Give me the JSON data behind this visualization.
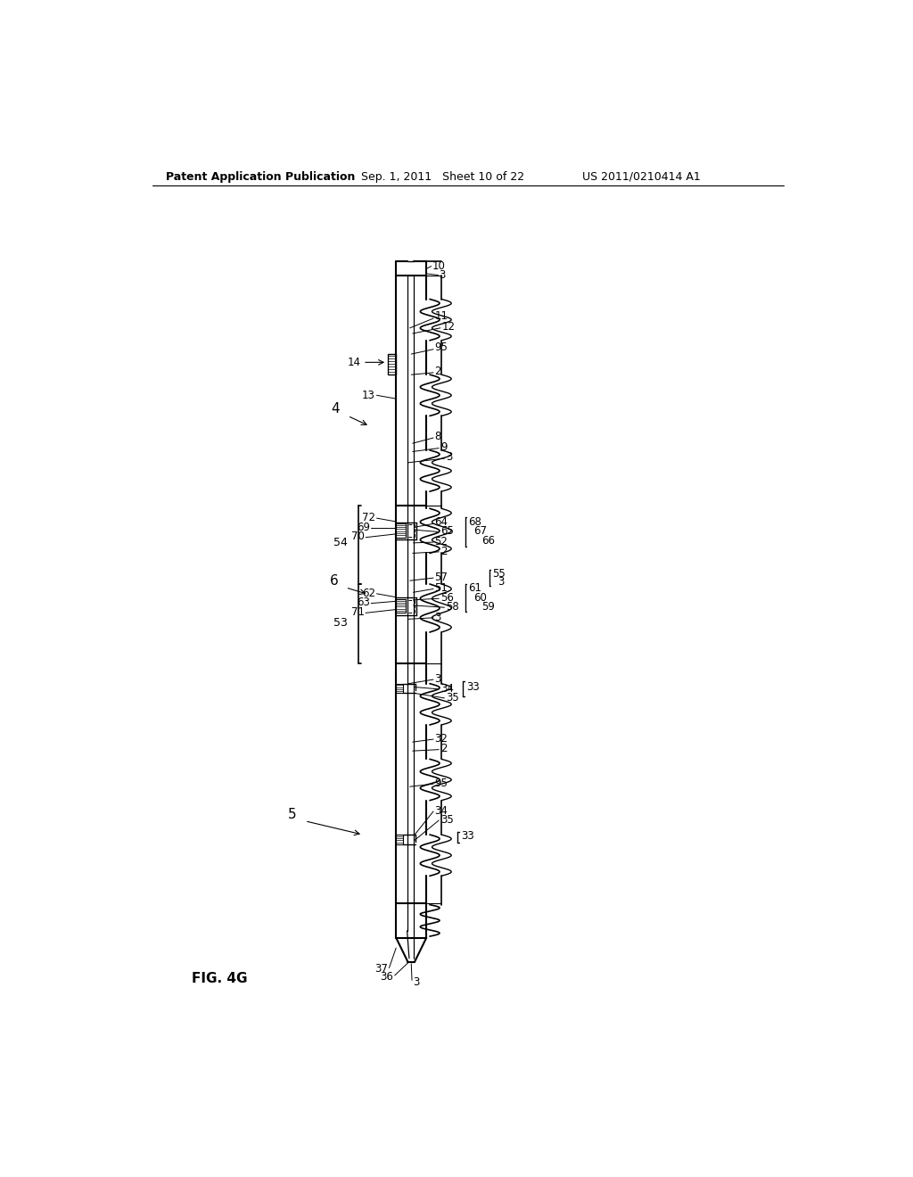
{
  "header_left": "Patent Application Publication",
  "header_center": "Sep. 1, 2011   Sheet 10 of 22",
  "header_right": "US 2011/0210414 A1",
  "figure_label": "FIG. 4G",
  "bg_color": "#ffffff",
  "line_color": "#000000",
  "fig_width": 10.24,
  "fig_height": 13.2
}
